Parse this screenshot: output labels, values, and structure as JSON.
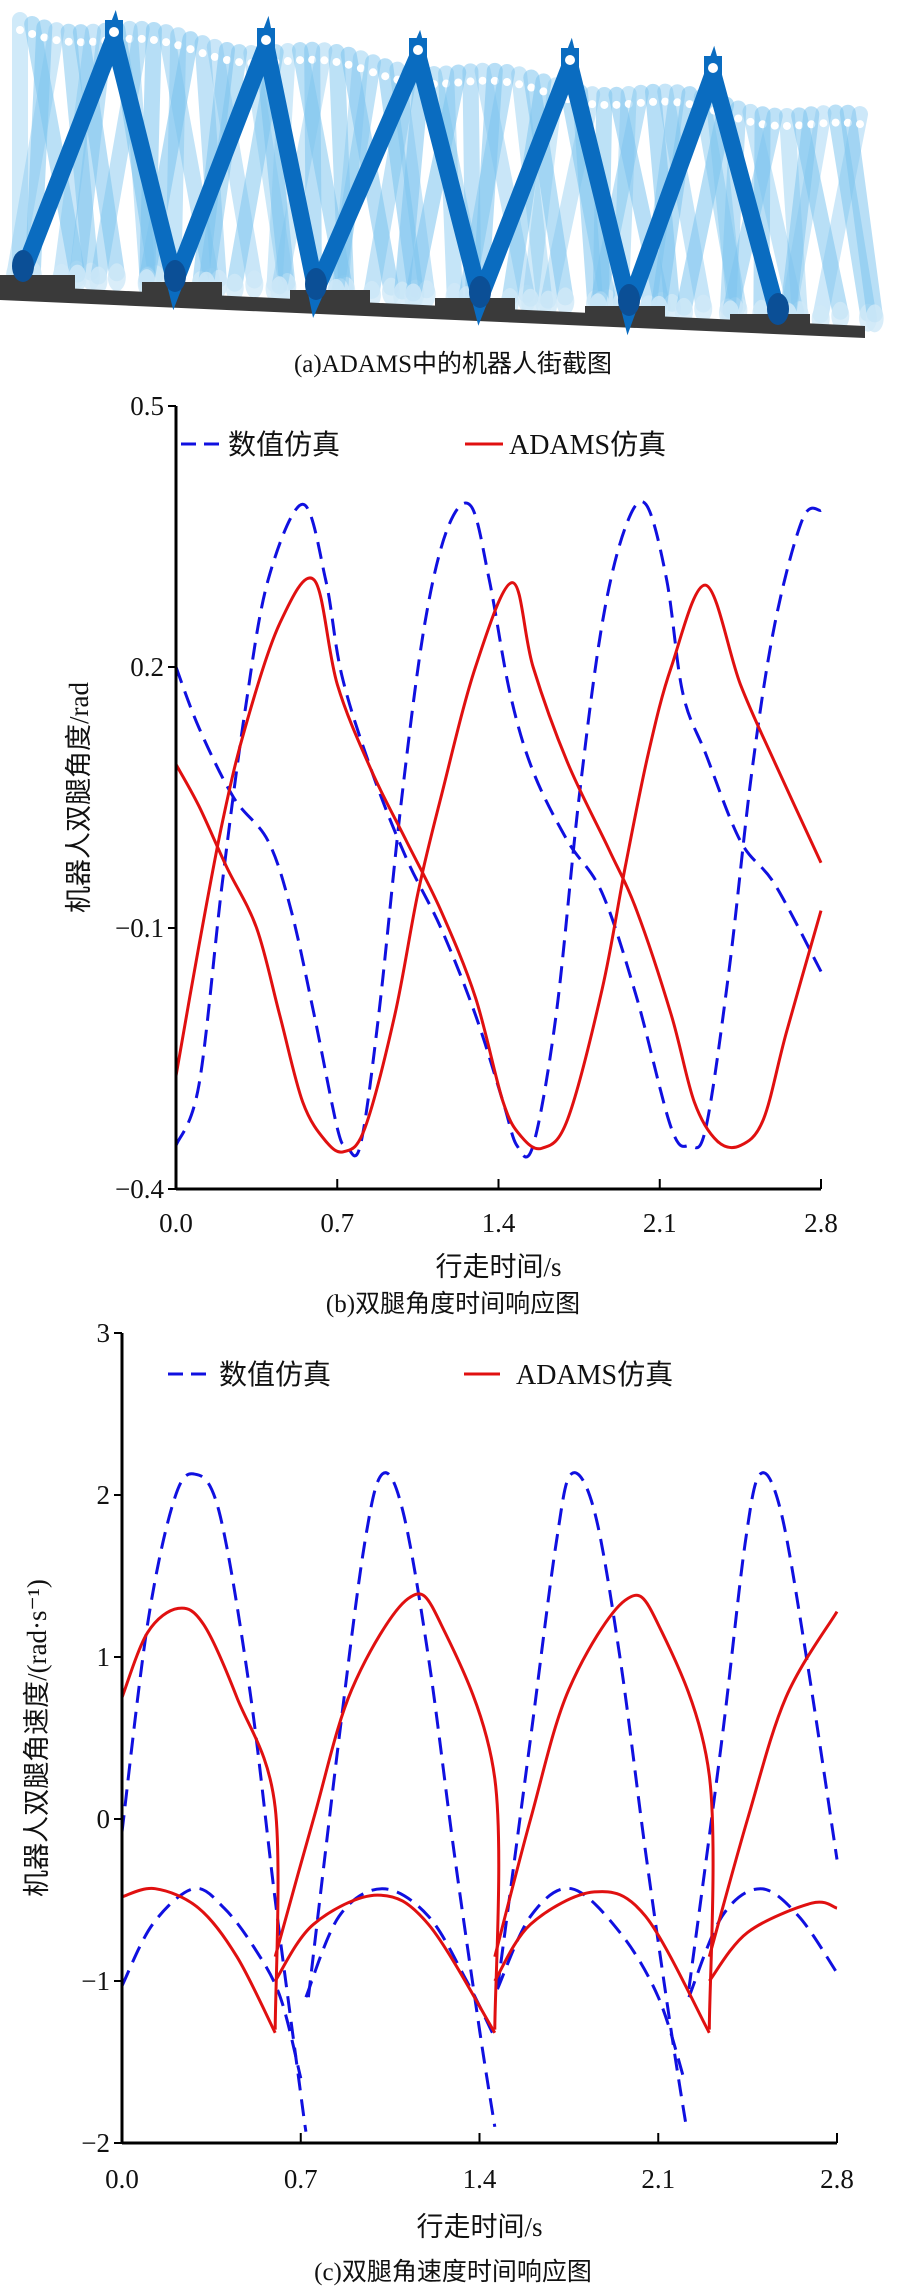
{
  "figure_a": {
    "caption": "(a)ADAMS中的机器人街截图"
  },
  "colors": {
    "numeric": "#1010e0",
    "adams": "#e01010",
    "leg_dark": "#0a6cc0",
    "leg_light": "#7cc4ef",
    "ground": "#3a3a3a"
  },
  "chart_data": [
    {
      "type": "line",
      "caption": "(b)双腿角度时间响应图",
      "xlabel": "行走时间/s",
      "ylabel": "机器人双腿角度/rad",
      "xlim": [
        0,
        2.8
      ],
      "ylim": [
        -0.4,
        0.5
      ],
      "xticks": [
        "0.0",
        "0.7",
        "1.4",
        "2.1",
        "2.8"
      ],
      "xtick_values": [
        0,
        0.7,
        1.4,
        2.1,
        2.8
      ],
      "yticks": [
        "0.5",
        "0.2",
        "−0.1",
        "−0.4"
      ],
      "ytick_values": [
        0.5,
        0.2,
        -0.1,
        -0.4
      ],
      "legend": [
        "数值仿真",
        "ADAMS仿真"
      ],
      "legend_position": "top",
      "series": [
        {
          "name": "数值仿真",
          "style": "dashed",
          "segments": [
            [
              [
                0,
                -0.35
              ],
              [
                0.1,
                -0.28
              ],
              [
                0.2,
                -0.05
              ],
              [
                0.3,
                0.15
              ],
              [
                0.4,
                0.3
              ],
              [
                0.55,
                0.387
              ],
              [
                0.65,
                0.3
              ],
              [
                0.72,
                0.19
              ],
              [
                0.85,
                0.08
              ],
              [
                1.0,
                -0.02
              ],
              [
                1.15,
                -0.1
              ],
              [
                1.3,
                -0.2
              ],
              [
                1.42,
                -0.3
              ],
              [
                1.48,
                -0.35
              ],
              [
                1.55,
                -0.35
              ],
              [
                1.65,
                -0.2
              ],
              [
                1.75,
                0.05
              ],
              [
                1.85,
                0.25
              ],
              [
                1.95,
                0.36
              ],
              [
                2.04,
                0.387
              ],
              [
                2.13,
                0.3
              ],
              [
                2.2,
                0.17
              ],
              [
                2.3,
                0.1
              ],
              [
                2.45,
                0.0
              ],
              [
                2.6,
                -0.05
              ],
              [
                2.8,
                -0.15
              ]
            ],
            [
              [
                0,
                0.2
              ],
              [
                0.1,
                0.13
              ],
              [
                0.25,
                0.05
              ],
              [
                0.4,
                0.0
              ],
              [
                0.5,
                -0.08
              ],
              [
                0.6,
                -0.2
              ],
              [
                0.7,
                -0.33
              ],
              [
                0.74,
                -0.35
              ],
              [
                0.8,
                -0.35
              ],
              [
                0.88,
                -0.2
              ],
              [
                0.98,
                0.05
              ],
              [
                1.08,
                0.25
              ],
              [
                1.18,
                0.36
              ],
              [
                1.28,
                0.385
              ],
              [
                1.36,
                0.3
              ],
              [
                1.45,
                0.17
              ],
              [
                1.55,
                0.08
              ],
              [
                1.7,
                0.0
              ],
              [
                1.85,
                -0.06
              ],
              [
                2.0,
                -0.18
              ],
              [
                2.15,
                -0.33
              ],
              [
                2.23,
                -0.35
              ],
              [
                2.3,
                -0.33
              ],
              [
                2.4,
                -0.15
              ],
              [
                2.5,
                0.08
              ],
              [
                2.6,
                0.25
              ],
              [
                2.72,
                0.37
              ],
              [
                2.8,
                0.38
              ]
            ]
          ]
        },
        {
          "name": "ADAMS仿真",
          "style": "solid",
          "segments": [
            [
              [
                0,
                -0.27
              ],
              [
                0.1,
                -0.12
              ],
              [
                0.2,
                0.02
              ],
              [
                0.3,
                0.13
              ],
              [
                0.45,
                0.25
              ],
              [
                0.6,
                0.3
              ],
              [
                0.7,
                0.18
              ],
              [
                0.85,
                0.08
              ],
              [
                1.0,
                0.0
              ],
              [
                1.15,
                -0.08
              ],
              [
                1.3,
                -0.18
              ],
              [
                1.42,
                -0.3
              ],
              [
                1.5,
                -0.34
              ],
              [
                1.59,
                -0.353
              ],
              [
                1.7,
                -0.32
              ],
              [
                1.85,
                -0.17
              ],
              [
                1.95,
                -0.03
              ],
              [
                2.05,
                0.1
              ],
              [
                2.15,
                0.2
              ],
              [
                2.3,
                0.294
              ],
              [
                2.45,
                0.18
              ],
              [
                2.6,
                0.09
              ],
              [
                2.8,
                -0.025
              ]
            ],
            [
              [
                0,
                0.088
              ],
              [
                0.1,
                0.04
              ],
              [
                0.22,
                -0.03
              ],
              [
                0.35,
                -0.1
              ],
              [
                0.45,
                -0.2
              ],
              [
                0.55,
                -0.3
              ],
              [
                0.65,
                -0.345
              ],
              [
                0.73,
                -0.357
              ],
              [
                0.82,
                -0.33
              ],
              [
                0.95,
                -0.2
              ],
              [
                1.05,
                -0.06
              ],
              [
                1.15,
                0.05
              ],
              [
                1.3,
                0.2
              ],
              [
                1.46,
                0.297
              ],
              [
                1.55,
                0.2
              ],
              [
                1.7,
                0.09
              ],
              [
                1.88,
                -0.01
              ],
              [
                2.0,
                -0.08
              ],
              [
                2.15,
                -0.2
              ],
              [
                2.25,
                -0.3
              ],
              [
                2.35,
                -0.345
              ],
              [
                2.45,
                -0.35
              ],
              [
                2.55,
                -0.32
              ],
              [
                2.65,
                -0.22
              ],
              [
                2.8,
                -0.08
              ]
            ]
          ]
        }
      ]
    },
    {
      "type": "line",
      "caption": "(c)双腿角速度时间响应图",
      "xlabel": "行走时间/s",
      "ylabel": "机器人双腿角速度/(rad·s⁻¹)",
      "xlim": [
        0,
        2.8
      ],
      "ylim": [
        -2,
        3
      ],
      "xticks": [
        "0.0",
        "0.7",
        "1.4",
        "2.1",
        "2.8"
      ],
      "xtick_values": [
        0,
        0.7,
        1.4,
        2.1,
        2.8
      ],
      "yticks": [
        "3",
        "2",
        "1",
        "0",
        "−1",
        "−2"
      ],
      "ytick_values": [
        3,
        2,
        1,
        0,
        -1,
        -2
      ],
      "legend": [
        "数值仿真",
        "ADAMS仿真"
      ],
      "legend_position": "top",
      "series": [
        {
          "name": "数值仿真",
          "style": "dashed",
          "segments": [
            [
              [
                0,
                -0.08
              ],
              [
                0.1,
                1.2
              ],
              [
                0.2,
                1.95
              ],
              [
                0.28,
                2.13
              ],
              [
                0.38,
                1.9
              ],
              [
                0.5,
                0.8
              ],
              [
                0.6,
                -0.5
              ],
              [
                0.7,
                -1.7
              ],
              [
                0.72,
                -1.93
              ]
            ],
            [
              [
                0.73,
                -1.1
              ],
              [
                0.85,
                0.5
              ],
              [
                0.95,
                1.7
              ],
              [
                1.02,
                2.13
              ],
              [
                1.1,
                1.9
              ],
              [
                1.2,
                1.0
              ],
              [
                1.3,
                -0.2
              ],
              [
                1.4,
                -1.3
              ],
              [
                1.46,
                -1.9
              ]
            ],
            [
              [
                1.47,
                -1.05
              ],
              [
                1.6,
                0.5
              ],
              [
                1.7,
                1.7
              ],
              [
                1.76,
                2.13
              ],
              [
                1.85,
                1.9
              ],
              [
                1.95,
                1.0
              ],
              [
                2.05,
                -0.2
              ],
              [
                2.15,
                -1.3
              ],
              [
                2.21,
                -1.9
              ]
            ],
            [
              [
                2.22,
                -1.05
              ],
              [
                2.35,
                0.5
              ],
              [
                2.44,
                1.7
              ],
              [
                2.5,
                2.13
              ],
              [
                2.58,
                1.9
              ],
              [
                2.68,
                1.0
              ],
              [
                2.8,
                -0.25
              ]
            ],
            [
              [
                0,
                -1.03
              ],
              [
                0.12,
                -0.65
              ],
              [
                0.28,
                -0.43
              ],
              [
                0.4,
                -0.55
              ],
              [
                0.52,
                -0.8
              ],
              [
                0.62,
                -1.1
              ],
              [
                0.7,
                -1.6
              ]
            ],
            [
              [
                0.72,
                -1.1
              ],
              [
                0.85,
                -0.6
              ],
              [
                1.02,
                -0.43
              ],
              [
                1.2,
                -0.6
              ],
              [
                1.35,
                -1.0
              ],
              [
                1.46,
                -1.35
              ]
            ],
            [
              [
                1.47,
                -1.05
              ],
              [
                1.6,
                -0.6
              ],
              [
                1.76,
                -0.43
              ],
              [
                1.95,
                -0.7
              ],
              [
                2.1,
                -1.1
              ],
              [
                2.2,
                -1.6
              ]
            ],
            [
              [
                2.22,
                -1.1
              ],
              [
                2.35,
                -0.6
              ],
              [
                2.5,
                -0.43
              ],
              [
                2.65,
                -0.6
              ],
              [
                2.8,
                -0.95
              ]
            ]
          ]
        },
        {
          "name": "ADAMS仿真",
          "style": "solid",
          "segments": [
            [
              [
                0,
                0.75
              ],
              [
                0.1,
                1.15
              ],
              [
                0.22,
                1.3
              ],
              [
                0.32,
                1.2
              ],
              [
                0.45,
                0.75
              ],
              [
                0.6,
                0.07
              ],
              [
                0.6,
                -1.3
              ]
            ],
            [
              [
                0.6,
                -0.85
              ],
              [
                0.75,
                0.0
              ],
              [
                0.9,
                0.8
              ],
              [
                1.12,
                1.36
              ],
              [
                1.25,
                1.2
              ],
              [
                1.46,
                0.25
              ],
              [
                1.46,
                -1.3
              ]
            ],
            [
              [
                1.46,
                -0.85
              ],
              [
                1.6,
                0.0
              ],
              [
                1.75,
                0.8
              ],
              [
                1.97,
                1.35
              ],
              [
                2.1,
                1.2
              ],
              [
                2.3,
                0.27
              ],
              [
                2.3,
                -1.3
              ]
            ],
            [
              [
                2.3,
                -0.85
              ],
              [
                2.45,
                0.0
              ],
              [
                2.6,
                0.75
              ],
              [
                2.8,
                1.28
              ]
            ],
            [
              [
                0,
                -0.48
              ],
              [
                0.13,
                -0.43
              ],
              [
                0.3,
                -0.55
              ],
              [
                0.45,
                -0.85
              ],
              [
                0.6,
                -1.32
              ]
            ],
            [
              [
                0.6,
                -1.0
              ],
              [
                0.75,
                -0.65
              ],
              [
                1.0,
                -0.47
              ],
              [
                1.2,
                -0.65
              ],
              [
                1.46,
                -1.32
              ]
            ],
            [
              [
                1.46,
                -1.0
              ],
              [
                1.6,
                -0.65
              ],
              [
                1.85,
                -0.45
              ],
              [
                2.05,
                -0.6
              ],
              [
                2.3,
                -1.32
              ]
            ],
            [
              [
                2.3,
                -1.0
              ],
              [
                2.45,
                -0.7
              ],
              [
                2.7,
                -0.52
              ],
              [
                2.8,
                -0.55
              ]
            ]
          ]
        }
      ]
    }
  ]
}
